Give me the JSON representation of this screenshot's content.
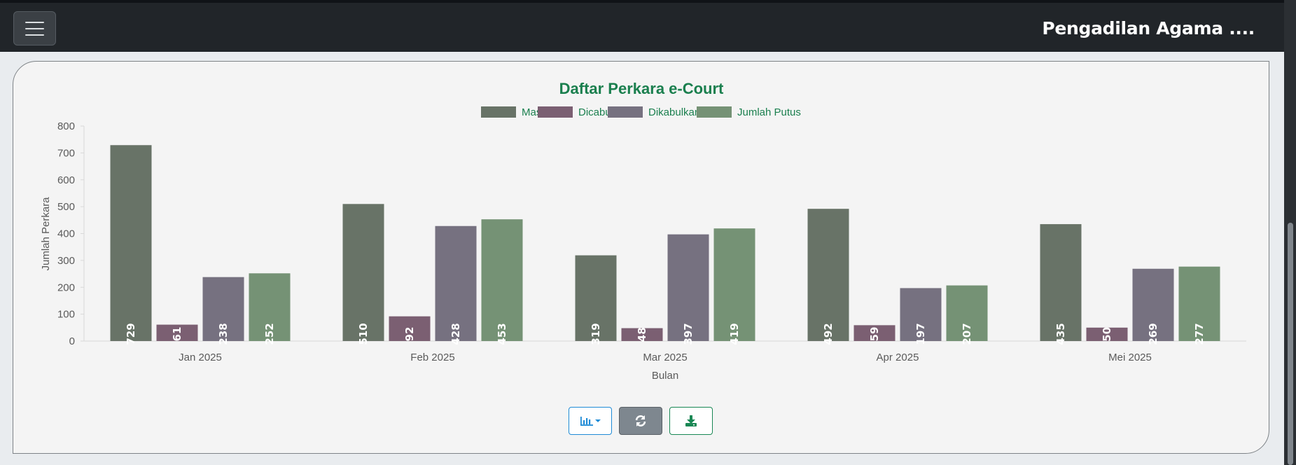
{
  "header": {
    "brand": "Pengadilan Agama ...."
  },
  "chart_data": {
    "type": "bar",
    "title": "Daftar Perkara e-Court",
    "xlabel": "Bulan",
    "ylabel": "Jumlah Perkara",
    "ylim": [
      0,
      800
    ],
    "yticks": [
      0,
      100,
      200,
      300,
      400,
      500,
      600,
      700,
      800
    ],
    "legend_position": "top",
    "grid": false,
    "categories": [
      "Jan 2025",
      "Feb 2025",
      "Mar 2025",
      "Apr 2025",
      "Mei 2025"
    ],
    "series": [
      {
        "name": "Masuk",
        "color": "#687367",
        "values": [
          729,
          510,
          319,
          492,
          435
        ]
      },
      {
        "name": "Dicabut",
        "color": "#7b5f72",
        "values": [
          61,
          92,
          48,
          59,
          50
        ]
      },
      {
        "name": "Dikabulkan",
        "color": "#767180",
        "values": [
          238,
          428,
          397,
          197,
          269
        ]
      },
      {
        "name": "Jumlah Putus",
        "color": "#759275",
        "values": [
          252,
          453,
          419,
          207,
          277
        ]
      }
    ]
  },
  "colors": {
    "title": "#1a7f4e",
    "axis_text": "#5a5a5a",
    "topbar": "#212529"
  },
  "toolbar": {
    "chart_type_icon": "bar-chart-icon",
    "refresh_icon": "refresh-icon",
    "download_icon": "download-icon"
  }
}
